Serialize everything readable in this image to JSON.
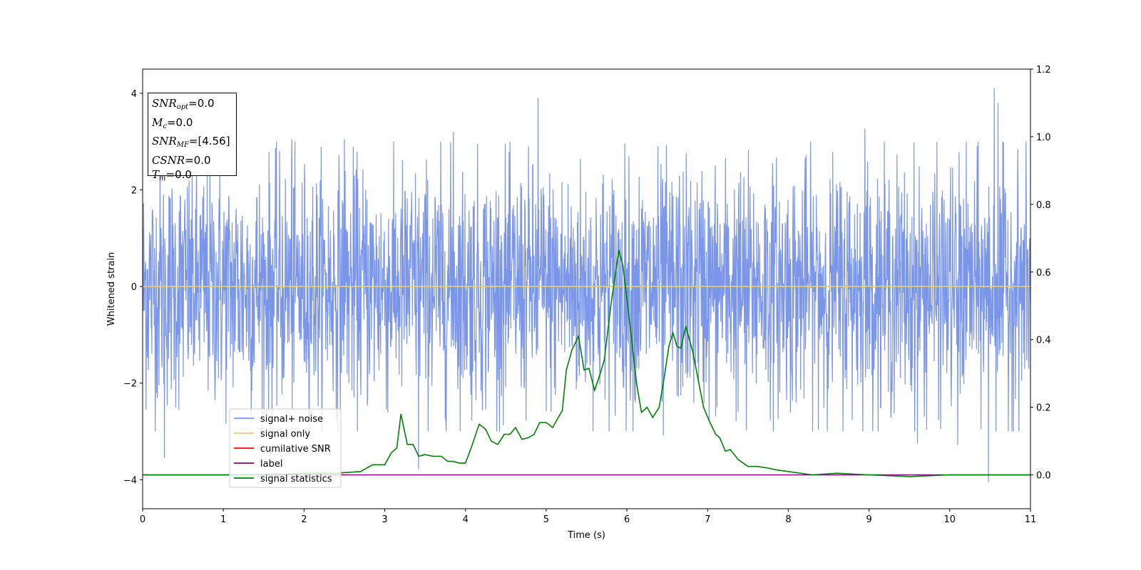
{
  "chart_data": {
    "type": "line",
    "xlabel": "Time (s)",
    "ylabel": "Whitened strain",
    "xlim": [
      0,
      11
    ],
    "ylim": [
      -4.6,
      4.5
    ],
    "y2lim": [
      -0.1,
      1.2
    ],
    "xticks": [
      0,
      1,
      2,
      3,
      4,
      5,
      6,
      7,
      8,
      9,
      10,
      11
    ],
    "yticks": [
      -4,
      -2,
      0,
      2,
      4
    ],
    "y2ticks": [
      0.0,
      0.2,
      0.4,
      0.6,
      0.8,
      1.0,
      1.2
    ],
    "grid": false,
    "legend_position": "lower-left",
    "annotation": {
      "lines": [
        {
          "base": "SNR",
          "sub": "opt",
          "value": "=0.0"
        },
        {
          "base": "M",
          "sub": "c",
          "value": "=0.0"
        },
        {
          "base": "SNR",
          "sub": "MF",
          "value": "=[4.56]"
        },
        {
          "base": "CSNR",
          "sub": "",
          "value": "=0.0"
        },
        {
          "base": "T",
          "sub": "m",
          "value": "=0.0"
        }
      ]
    },
    "series": [
      {
        "name": "signal+ noise",
        "color": "#7b96e8",
        "kind": "noise",
        "axis": "left",
        "typical_envelope": [
          -1.8,
          2.2
        ],
        "peaks": [
          {
            "x": 0.27,
            "y": -3.55
          },
          {
            "x": 1.85,
            "y": 3.05
          },
          {
            "x": 2.5,
            "y": 3.05
          },
          {
            "x": 3.42,
            "y": -3.78
          },
          {
            "x": 3.85,
            "y": 3.2
          },
          {
            "x": 4.9,
            "y": 3.9
          },
          {
            "x": 6.45,
            "y": -3.08
          },
          {
            "x": 7.48,
            "y": -2.98
          },
          {
            "x": 8.95,
            "y": 3.27
          },
          {
            "x": 9.6,
            "y": -3.25
          },
          {
            "x": 10.1,
            "y": -3.28
          },
          {
            "x": 10.48,
            "y": -4.05
          },
          {
            "x": 10.55,
            "y": 4.1
          },
          {
            "x": 10.6,
            "y": 3.8
          }
        ]
      },
      {
        "name": "signal only",
        "color": "#f5c67a",
        "axis": "left",
        "x": [
          0,
          11
        ],
        "y": [
          0,
          0
        ]
      },
      {
        "name": "cumilative SNR",
        "color": "#ff0000",
        "axis": "right",
        "x": [],
        "y": []
      },
      {
        "name": "label",
        "color": "#800080",
        "axis": "right",
        "x": [
          0,
          11
        ],
        "y": [
          0,
          0
        ]
      },
      {
        "name": "signal statistics",
        "color": "#008000",
        "axis": "right",
        "x": [
          0,
          0.5,
          1.0,
          1.5,
          2.0,
          2.4,
          2.7,
          2.85,
          3.0,
          3.08,
          3.15,
          3.2,
          3.28,
          3.35,
          3.42,
          3.5,
          3.6,
          3.7,
          3.78,
          3.85,
          3.92,
          4.0,
          4.07,
          4.17,
          4.25,
          4.32,
          4.4,
          4.48,
          4.55,
          4.62,
          4.7,
          4.78,
          4.85,
          4.92,
          5.0,
          5.08,
          5.15,
          5.2,
          5.25,
          5.32,
          5.4,
          5.47,
          5.53,
          5.6,
          5.67,
          5.72,
          5.8,
          5.9,
          5.95,
          6.05,
          6.12,
          6.18,
          6.25,
          6.32,
          6.4,
          6.47,
          6.52,
          6.57,
          6.62,
          6.67,
          6.73,
          6.82,
          6.9,
          6.95,
          7.02,
          7.1,
          7.15,
          7.22,
          7.28,
          7.38,
          7.5,
          7.62,
          7.75,
          7.85,
          8.0,
          8.3,
          8.6,
          9.0,
          9.5,
          10.0,
          10.5,
          11.0
        ],
        "y": [
          0.0,
          0.0,
          0.0,
          0.0,
          0.005,
          0.005,
          0.01,
          0.03,
          0.03,
          0.065,
          0.08,
          0.18,
          0.09,
          0.09,
          0.055,
          0.06,
          0.055,
          0.055,
          0.04,
          0.04,
          0.035,
          0.035,
          0.08,
          0.15,
          0.135,
          0.1,
          0.09,
          0.12,
          0.12,
          0.14,
          0.105,
          0.11,
          0.12,
          0.155,
          0.155,
          0.14,
          0.17,
          0.19,
          0.31,
          0.37,
          0.41,
          0.31,
          0.315,
          0.25,
          0.3,
          0.34,
          0.5,
          0.665,
          0.62,
          0.42,
          0.27,
          0.185,
          0.2,
          0.17,
          0.2,
          0.3,
          0.38,
          0.42,
          0.38,
          0.375,
          0.44,
          0.36,
          0.26,
          0.2,
          0.16,
          0.12,
          0.11,
          0.07,
          0.075,
          0.045,
          0.025,
          0.025,
          0.02,
          0.015,
          0.01,
          0.0,
          0.005,
          0.0,
          -0.005,
          0.0,
          0.0,
          0.0
        ]
      }
    ]
  }
}
